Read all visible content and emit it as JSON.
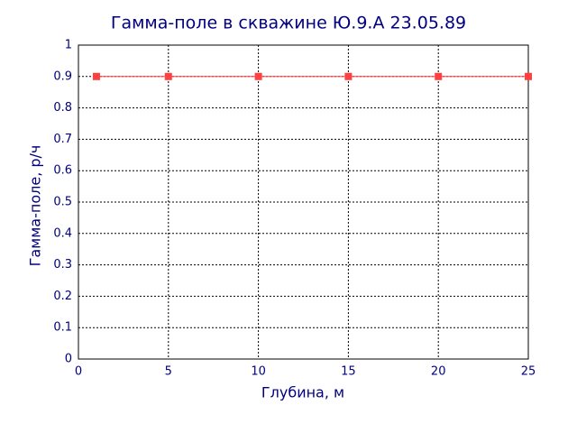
{
  "chart_data": {
    "type": "line",
    "title": "Гамма-поле в скважине Ю.9.А 23.05.89",
    "x_label": "Глубина, м",
    "y_label": "Гамма-поле, р/ч",
    "x": [
      1,
      5,
      10,
      15,
      20,
      25
    ],
    "values": [
      0.9,
      0.9,
      0.9,
      0.9,
      0.9,
      0.9
    ],
    "color": "#ff4040",
    "xlim": [
      0,
      25
    ],
    "xticks": [
      0,
      5,
      10,
      15,
      20,
      25
    ],
    "ylim": [
      0,
      1
    ],
    "yticks": [
      0,
      0.1,
      0.2,
      0.3,
      0.4,
      0.5,
      0.6,
      0.7,
      0.8,
      0.9,
      1
    ],
    "grid": true
  }
}
